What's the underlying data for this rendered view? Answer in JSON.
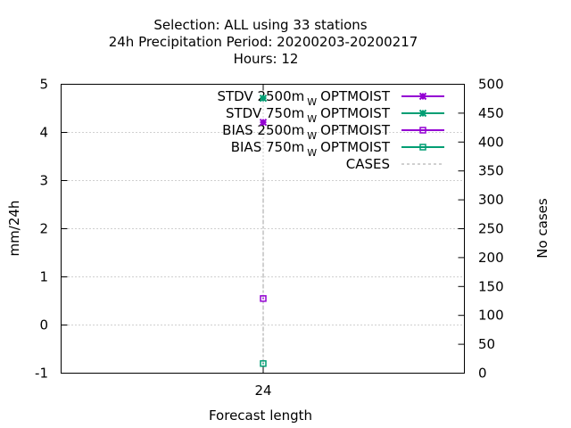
{
  "chart_data": {
    "type": "scatter",
    "title_lines": [
      "Selection: ALL using    33 stations",
      "24h Precipitation   Period: 20200203-20200217",
      "Hours:  12"
    ],
    "xlabel": "Forecast length",
    "ylabel": "mm/24h",
    "y2label": "No cases",
    "x_ticks": [
      24
    ],
    "x_tick_labels": [
      "24"
    ],
    "ylim": [
      -1,
      5
    ],
    "y_ticks": [
      -1,
      0,
      1,
      2,
      3,
      4,
      5
    ],
    "y_tick_labels": [
      "-1",
      "0",
      "1",
      "2",
      "3",
      "4",
      "5"
    ],
    "y2lim": [
      0,
      500
    ],
    "y2_ticks": [
      0,
      50,
      100,
      150,
      200,
      250,
      300,
      350,
      400,
      450,
      500
    ],
    "y2_tick_labels": [
      "0",
      "50",
      "100",
      "150",
      "200",
      "250",
      "300",
      "350",
      "400",
      "450",
      "500"
    ],
    "grid": true,
    "legend_position": "top-right",
    "series": [
      {
        "name_main": "STDV 2500m",
        "name_sub": "W",
        "name_tail": "OPTMOIST",
        "color": "#9400d3",
        "marker": "star",
        "axis": "y",
        "points": [
          {
            "x": 24,
            "y": 4.21
          }
        ]
      },
      {
        "name_main": "STDV 750m",
        "name_sub": "W",
        "name_tail": "OPTMOIST",
        "color": "#009e73",
        "marker": "star",
        "axis": "y",
        "points": [
          {
            "x": 24,
            "y": 4.71
          }
        ]
      },
      {
        "name_main": "BIAS 2500m",
        "name_sub": "W",
        "name_tail": "OPTMOIST",
        "color": "#9400d3",
        "marker": "square",
        "axis": "y",
        "points": [
          {
            "x": 24,
            "y": 0.55
          }
        ]
      },
      {
        "name_main": "BIAS 750m",
        "name_sub": "W",
        "name_tail": "OPTMOIST",
        "color": "#009e73",
        "marker": "square",
        "axis": "y",
        "points": [
          {
            "x": 24,
            "y": -0.8
          }
        ]
      },
      {
        "name_main": "CASES",
        "name_sub": "",
        "name_tail": "",
        "color": "#a0a0a0",
        "marker": "none",
        "dashed": true,
        "axis": "y2",
        "points": [
          {
            "x": 24,
            "y": 347
          }
        ]
      }
    ]
  }
}
